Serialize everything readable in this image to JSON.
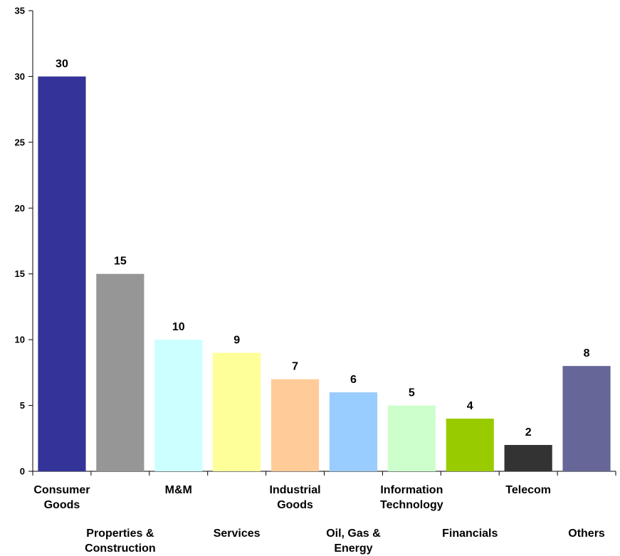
{
  "chart_data": {
    "type": "bar",
    "categories": [
      [
        "Consumer",
        "Goods"
      ],
      [
        "Properties &",
        "Construction"
      ],
      [
        "M&M"
      ],
      [
        "Services"
      ],
      [
        "Industrial",
        "Goods"
      ],
      [
        "Oil, Gas &",
        "Energy"
      ],
      [
        "Information",
        "Technology"
      ],
      [
        "Financials"
      ],
      [
        "Telecom"
      ],
      [
        "Others"
      ]
    ],
    "values": [
      30,
      15,
      10,
      9,
      7,
      6,
      5,
      4,
      2,
      8
    ],
    "colors": [
      "#333399",
      "#969696",
      "#ccffff",
      "#ffff99",
      "#ffcc99",
      "#99ccff",
      "#ccffcc",
      "#99cc00",
      "#333333",
      "#666699"
    ],
    "ylim": [
      0,
      35
    ],
    "yticks": [
      0,
      5,
      10,
      15,
      20,
      25,
      30,
      35
    ],
    "grid": false,
    "legend": "none",
    "title": "",
    "xlabel": "",
    "ylabel": ""
  }
}
